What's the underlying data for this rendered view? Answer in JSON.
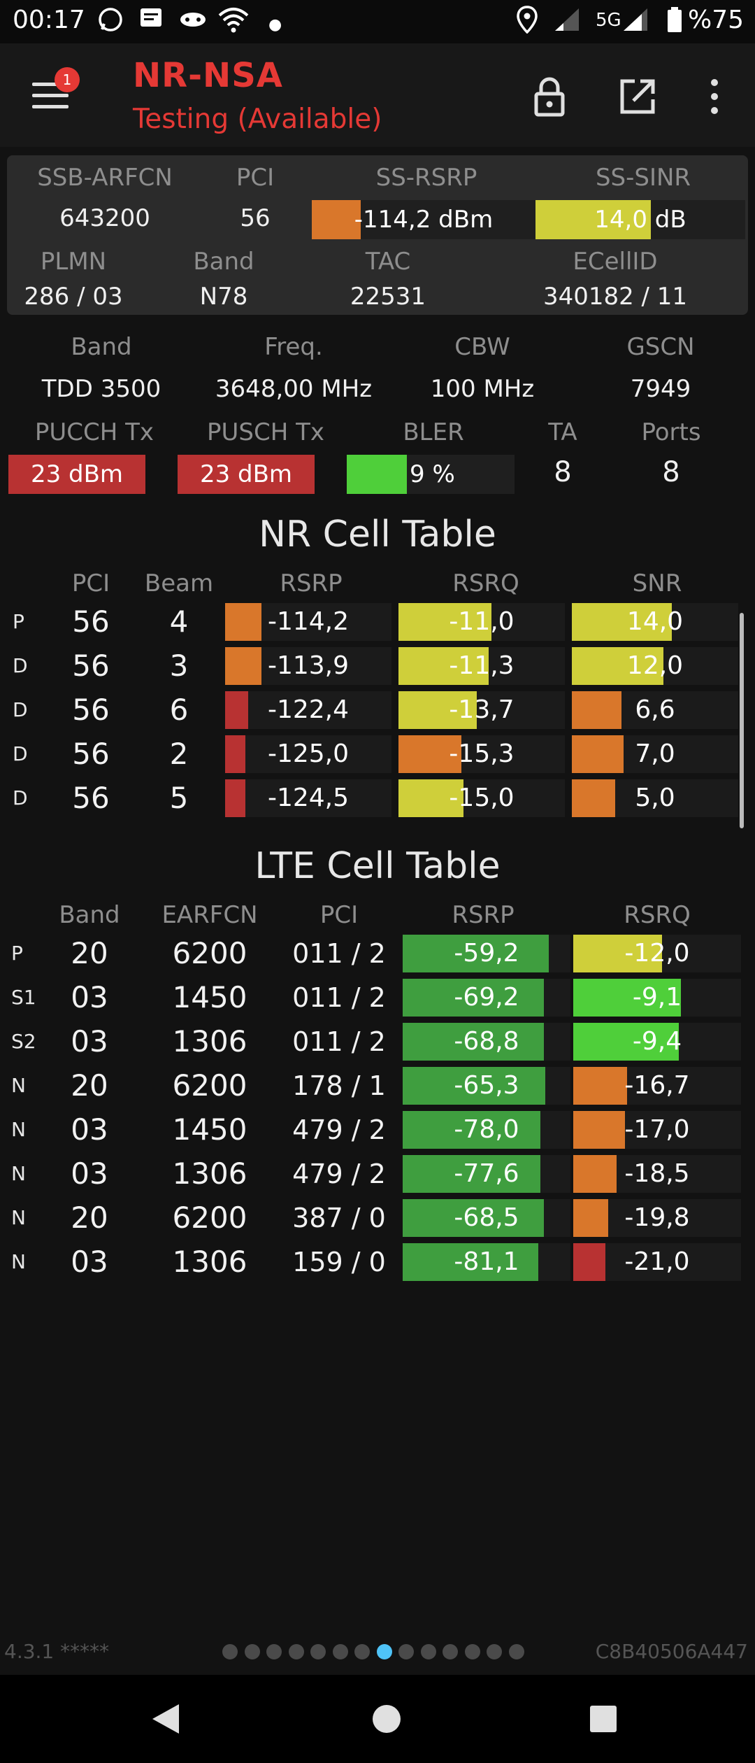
{
  "status_bar": {
    "time": "00:17",
    "network": "5G",
    "battery": "%75"
  },
  "toolbar": {
    "title": "NR-NSA",
    "subtitle": "Testing (Available)",
    "badge_count": "1"
  },
  "summary": {
    "row1_labels": [
      "SSB-ARFCN",
      "PCI",
      "SS-RSRP",
      "SS-SINR"
    ],
    "ssb_arfcn": "643200",
    "pci": "56",
    "ss_rsrp": "-114,2 dBm",
    "ss_sinr": "14,0 dB",
    "row2_labels": [
      "PLMN",
      "Band",
      "TAC",
      "ECellID"
    ],
    "plmn": "286 / 03",
    "band": "N78",
    "tac": "22531",
    "ecellid": "340182 / 11"
  },
  "info": {
    "row1_labels": [
      "Band",
      "Freq.",
      "CBW",
      "GSCN"
    ],
    "band": "TDD 3500",
    "freq": "3648,00 MHz",
    "cbw": "100 MHz",
    "gscn": "7949",
    "row2_labels": [
      "PUCCH Tx",
      "PUSCH Tx",
      "BLER",
      "TA",
      "Ports"
    ],
    "pucch_tx": "23 dBm",
    "pusch_tx": "23 dBm",
    "bler": "9 %",
    "ta": "8",
    "ports": "8"
  },
  "nr_table": {
    "title": "NR Cell Table",
    "headers": [
      "PCI",
      "Beam",
      "RSRP",
      "RSRQ",
      "SNR"
    ],
    "rows": [
      {
        "tag": "P",
        "pci": "56",
        "beam": "4",
        "rsrp": "-114,2",
        "rsrq": "-11,0",
        "snr": "14,0",
        "rsrp_level": 0.22,
        "rsrq_level": 0.56,
        "snr_level": 0.6,
        "rsrp_color": "#d9772b",
        "rsrq_color": "#cfcf3a",
        "snr_color": "#cfcf3a"
      },
      {
        "tag": "D",
        "pci": "56",
        "beam": "3",
        "rsrp": "-113,9",
        "rsrq": "-11,3",
        "snr": "12,0",
        "rsrp_level": 0.22,
        "rsrq_level": 0.54,
        "snr_level": 0.55,
        "rsrp_color": "#d9772b",
        "rsrq_color": "#cfcf3a",
        "snr_color": "#cfcf3a"
      },
      {
        "tag": "D",
        "pci": "56",
        "beam": "6",
        "rsrp": "-122,4",
        "rsrq": "-13,7",
        "snr": "6,6",
        "rsrp_level": 0.14,
        "rsrq_level": 0.47,
        "snr_level": 0.3,
        "rsrp_color": "#b83232",
        "rsrq_color": "#cfcf3a",
        "snr_color": "#d9772b"
      },
      {
        "tag": "D",
        "pci": "56",
        "beam": "2",
        "rsrp": "-125,0",
        "rsrq": "-15,3",
        "snr": "7,0",
        "rsrp_level": 0.12,
        "rsrq_level": 0.38,
        "snr_level": 0.31,
        "rsrp_color": "#b83232",
        "rsrq_color": "#d9772b",
        "snr_color": "#d9772b"
      },
      {
        "tag": "D",
        "pci": "56",
        "beam": "5",
        "rsrp": "-124,5",
        "rsrq": "-15,0",
        "snr": "5,0",
        "rsrp_level": 0.12,
        "rsrq_level": 0.39,
        "snr_level": 0.26,
        "rsrp_color": "#b83232",
        "rsrq_color": "#cfcf3a",
        "snr_color": "#d9772b"
      }
    ]
  },
  "lte_table": {
    "title": "LTE Cell Table",
    "headers": [
      "Band",
      "EARFCN",
      "PCI",
      "RSRP",
      "RSRQ"
    ],
    "rows": [
      {
        "tag": "P",
        "band": "20",
        "earfcn": "6200",
        "pci": "011 / 2",
        "rsrp": "-59,2",
        "rsrq": "-12,0",
        "rsrp_level": 0.87,
        "rsrq_level": 0.53,
        "rsrp_color": "#3f9e3f",
        "rsrq_color": "#cfcf3a"
      },
      {
        "tag": "S1",
        "band": "03",
        "earfcn": "1450",
        "pci": "011 / 2",
        "rsrp": "-69,2",
        "rsrq": "-9,1",
        "rsrp_level": 0.84,
        "rsrq_level": 0.64,
        "rsrp_color": "#3f9e3f",
        "rsrq_color": "#4fcf3a"
      },
      {
        "tag": "S2",
        "band": "03",
        "earfcn": "1306",
        "pci": "011 / 2",
        "rsrp": "-68,8",
        "rsrq": "-9,4",
        "rsrp_level": 0.84,
        "rsrq_level": 0.63,
        "rsrp_color": "#3f9e3f",
        "rsrq_color": "#4fcf3a"
      },
      {
        "tag": "N",
        "band": "20",
        "earfcn": "6200",
        "pci": "178 / 1",
        "rsrp": "-65,3",
        "rsrq": "-16,7",
        "rsrp_level": 0.85,
        "rsrq_level": 0.32,
        "rsrp_color": "#3f9e3f",
        "rsrq_color": "#d9772b"
      },
      {
        "tag": "N",
        "band": "03",
        "earfcn": "1450",
        "pci": "479 / 2",
        "rsrp": "-78,0",
        "rsrq": "-17,0",
        "rsrp_level": 0.82,
        "rsrq_level": 0.31,
        "rsrp_color": "#3f9e3f",
        "rsrq_color": "#d9772b"
      },
      {
        "tag": "N",
        "band": "03",
        "earfcn": "1306",
        "pci": "479 / 2",
        "rsrp": "-77,6",
        "rsrq": "-18,5",
        "rsrp_level": 0.82,
        "rsrq_level": 0.26,
        "rsrp_color": "#3f9e3f",
        "rsrq_color": "#d9772b"
      },
      {
        "tag": "N",
        "band": "20",
        "earfcn": "6200",
        "pci": "387 / 0",
        "rsrp": "-68,5",
        "rsrq": "-19,8",
        "rsrp_level": 0.84,
        "rsrq_level": 0.21,
        "rsrp_color": "#3f9e3f",
        "rsrq_color": "#d9772b"
      },
      {
        "tag": "N",
        "band": "03",
        "earfcn": "1306",
        "pci": "159 / 0",
        "rsrp": "-81,1",
        "rsrq": "-21,0",
        "rsrp_level": 0.81,
        "rsrq_level": 0.19,
        "rsrp_color": "#3f9e3f",
        "rsrq_color": "#b83232"
      }
    ]
  },
  "levels": {
    "ss_rsrp": 0.22,
    "ss_sinr": 0.55,
    "pucch": 1.0,
    "pusch": 1.0,
    "bler": 0.36
  },
  "colors": {
    "orange": "#d9772b",
    "yellow": "#cfcf3a",
    "red": "#b83232",
    "green": "#3f9e3f",
    "bright_green": "#4fcf3a",
    "accent": "#e53935",
    "dot_active": "#4fc3f7"
  },
  "footer": {
    "version": "4.3.1 *****",
    "device_id": "C8B40506A447",
    "page_count": 14,
    "active_page": 7
  }
}
